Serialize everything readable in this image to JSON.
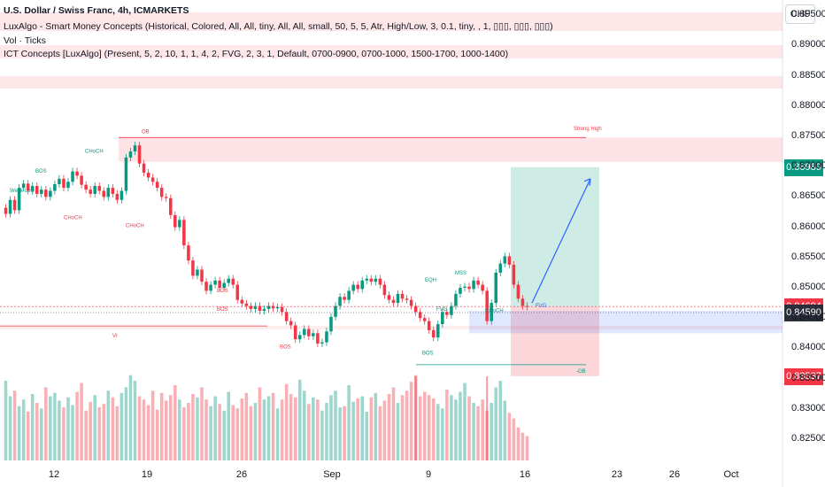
{
  "header": {
    "title": "U.S. Dollar / Swiss Franc, 4h, ICMARKETS",
    "indicator1": "LuxAlgo - Smart Money Concepts (Historical, Colored, All, All, tiny, All, All, small, 50, 5, 5, Atr, High/Low, 3, 0.1, tiny, , 1, ▯▯▯, ▯▯▯, ▯▯▯)",
    "indicator2": "Vol · Ticks",
    "indicator3": "ICT Concepts [LuxAlgo] (Present, 5, 2, 10, 1, 1, 4, 2, FVG, 2, 3, 1, Default, 0700-0900, 0700-1000, 1500-1700, 1000-1400)"
  },
  "currency_button": "CHF",
  "price_labels": [
    {
      "value": "0.86989",
      "color": "#089981"
    },
    {
      "value": "0.84694",
      "color": "#f23645"
    },
    {
      "value": "0.84590",
      "color": "#2a2e39"
    },
    {
      "value": "0.83537",
      "color": "#f23645"
    }
  ],
  "annotations": [
    "OB",
    "Strong High",
    "CHoCH",
    "BOS",
    "EQH",
    "MSS",
    "CHoCH",
    "FVG",
    "FVG",
    "VI",
    "BOS",
    "BOS",
    "BOS",
    "-OB",
    "Weak Low",
    "CHoCH",
    "CHoCH",
    "BOS"
  ],
  "colors": {
    "up": "#089981",
    "down": "#f23645",
    "target": "#089981",
    "stop": "#f23645",
    "arrow": "#2962ff"
  },
  "chart_data": {
    "type": "candlestick",
    "title": "U.S. Dollar / Swiss Franc, 4h, ICMARKETS",
    "x_ticks": [
      "12",
      "19",
      "26",
      "Sep",
      "9",
      "16",
      "23",
      "26",
      "Oct"
    ],
    "y_ticks": [
      "0.89500",
      "0.89000",
      "0.88500",
      "0.88000",
      "0.87500",
      "0.87000",
      "0.86500",
      "0.86000",
      "0.85500",
      "0.85000",
      "0.84500",
      "0.84000",
      "0.83500",
      "0.83000",
      "0.82500"
    ],
    "ylim": [
      0.8215,
      0.8975
    ],
    "candle_count": 118,
    "close": [
      0.8622,
      0.8645,
      0.8628,
      0.8665,
      0.8672,
      0.866,
      0.8668,
      0.8655,
      0.8662,
      0.865,
      0.866,
      0.8671,
      0.868,
      0.8665,
      0.8675,
      0.8692,
      0.8685,
      0.867,
      0.8662,
      0.8655,
      0.8668,
      0.866,
      0.865,
      0.8665,
      0.8655,
      0.8645,
      0.866,
      0.8715,
      0.8725,
      0.8735,
      0.8705,
      0.869,
      0.8682,
      0.8675,
      0.8665,
      0.865,
      0.8648,
      0.862,
      0.86,
      0.8612,
      0.857,
      0.8545,
      0.852,
      0.853,
      0.851,
      0.8495,
      0.8505,
      0.8512,
      0.85,
      0.8508,
      0.8515,
      0.8505,
      0.848,
      0.8474,
      0.847,
      0.8465,
      0.847,
      0.8462,
      0.8465,
      0.847,
      0.8466,
      0.8468,
      0.846,
      0.8445,
      0.8438,
      0.8415,
      0.8422,
      0.8432,
      0.842,
      0.8425,
      0.8408,
      0.841,
      0.8428,
      0.8452,
      0.847,
      0.8485,
      0.848,
      0.8495,
      0.8505,
      0.8498,
      0.8512,
      0.8515,
      0.851,
      0.8515,
      0.8505,
      0.8488,
      0.848,
      0.8475,
      0.849,
      0.8482,
      0.848,
      0.847,
      0.846,
      0.845,
      0.8445,
      0.843,
      0.8418,
      0.844,
      0.846,
      0.8455,
      0.847,
      0.849,
      0.85,
      0.8502,
      0.8498,
      0.8512,
      0.8505,
      0.8495,
      0.8445,
      0.8475,
      0.8525,
      0.854,
      0.8552,
      0.8538,
      0.8505,
      0.8482,
      0.847,
      0.8469
    ],
    "volume": [
      72,
      58,
      63,
      49,
      55,
      44,
      60,
      52,
      47,
      66,
      58,
      61,
      54,
      48,
      57,
      50,
      62,
      70,
      45,
      53,
      59,
      48,
      51,
      63,
      57,
      49,
      61,
      66,
      77,
      72,
      58,
      55,
      50,
      63,
      46,
      61,
      54,
      59,
      68,
      55,
      48,
      52,
      60,
      57,
      66,
      55,
      49,
      58,
      51,
      45,
      62,
      50,
      47,
      56,
      61,
      49,
      52,
      66,
      55,
      58,
      61,
      47,
      55,
      69,
      60,
      57,
      73,
      63,
      51,
      57,
      55,
      45,
      52,
      59,
      63,
      48,
      49,
      68,
      53,
      56,
      58,
      44,
      57,
      61,
      49,
      54,
      60,
      66,
      52,
      59,
      63,
      71,
      77,
      58,
      62,
      59,
      56,
      51,
      47,
      64,
      59,
      55,
      62,
      70,
      58,
      52,
      49,
      55,
      45,
      52,
      66,
      72,
      54,
      43,
      38,
      30,
      25,
      22
    ],
    "volume_spikes": [
      {
        "index": 92,
        "label": "high"
      },
      {
        "index": 108,
        "label": "high"
      }
    ],
    "zones": [
      {
        "label": "OB",
        "top": 0.8748,
        "bottom": 0.8708,
        "color": "#f23645"
      },
      {
        "label": "target",
        "top": 0.8699,
        "bottom": 0.8469,
        "color": "#089981"
      },
      {
        "label": "stop",
        "top": 0.8469,
        "bottom": 0.8354,
        "color": "#f23645"
      },
      {
        "label": "FVG",
        "top": 0.8462,
        "bottom": 0.8425,
        "color": "#2962ff"
      }
    ]
  }
}
